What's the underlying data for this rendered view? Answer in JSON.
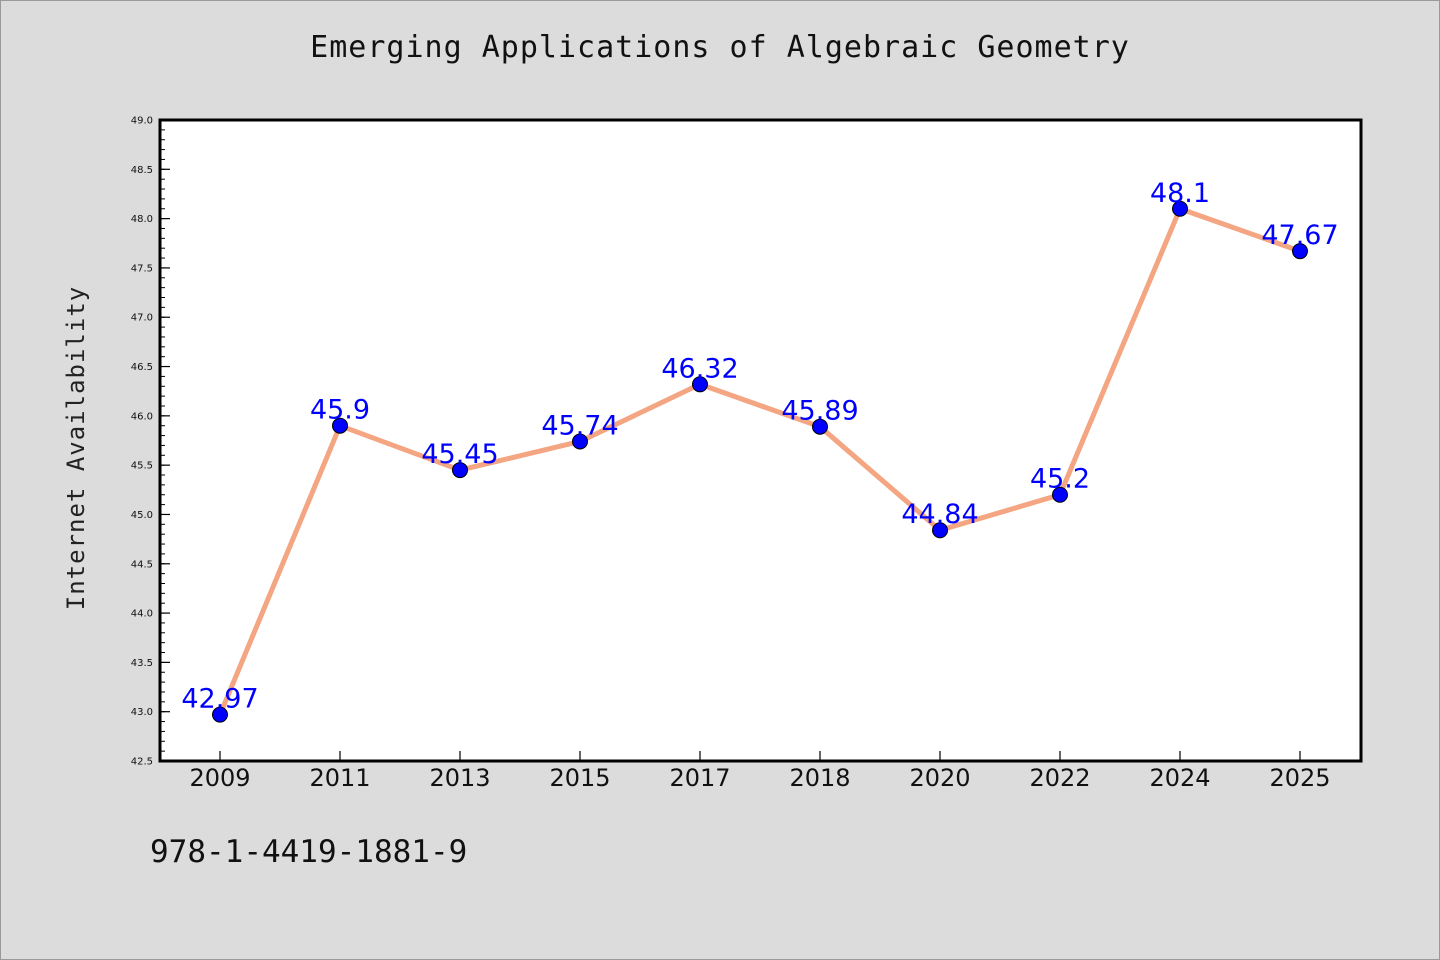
{
  "chart_data": {
    "type": "line",
    "title": "Emerging Applications of Algebraic Geometry",
    "xlabel": "",
    "ylabel": "Internet Availability",
    "categories": [
      "2009",
      "2011",
      "2013",
      "2015",
      "2017",
      "2018",
      "2020",
      "2022",
      "2024",
      "2025"
    ],
    "values": [
      42.97,
      45.9,
      45.45,
      45.74,
      46.32,
      45.89,
      44.84,
      45.2,
      48.1,
      47.67
    ],
    "data_labels": [
      "42.97",
      "45.9",
      "45.45",
      "45.74",
      "46.32",
      "45.89",
      "44.84",
      "45.2",
      "48.1",
      "47.67"
    ],
    "ylim": [
      42.5,
      49.0
    ],
    "yticks": [
      "42.5",
      "43.0",
      "43.5",
      "44.0",
      "44.5",
      "45.0",
      "45.5",
      "46.0",
      "46.5",
      "47.0",
      "47.5",
      "48.0",
      "48.5",
      "49.0"
    ],
    "grid": false,
    "line_color": "#f4a582",
    "marker_color": "#0000ff",
    "label_color": "#0000ff"
  },
  "footer": {
    "isbn": "978-1-4419-1881-9"
  }
}
